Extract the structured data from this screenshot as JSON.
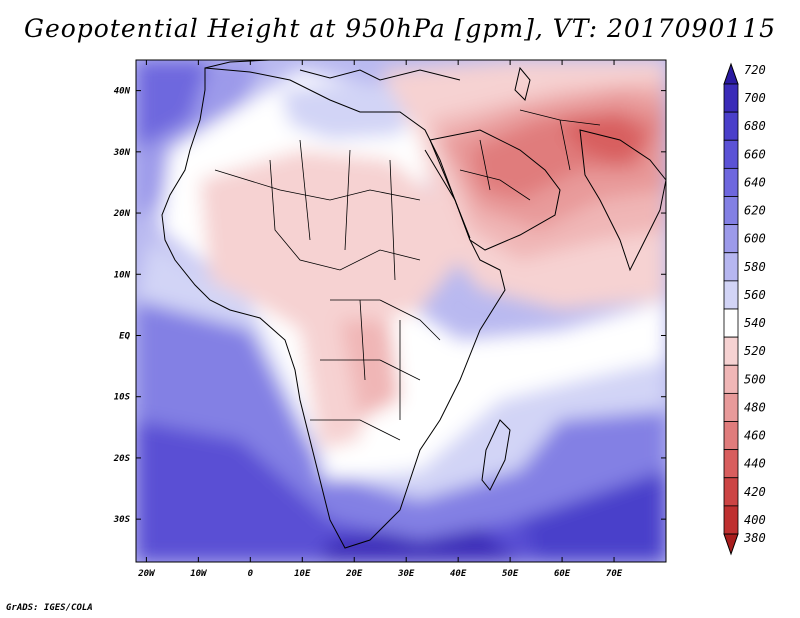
{
  "title": "Geopotential Height at 950hPa [gpm], VT: 2017090115",
  "footer": "GrADS: IGES/COLA",
  "axes": {
    "lon_labels": [
      "20W",
      "10W",
      "0",
      "10E",
      "20E",
      "30E",
      "40E",
      "50E",
      "60E",
      "70E"
    ],
    "lon_values": [
      -20,
      -10,
      0,
      10,
      20,
      30,
      40,
      50,
      60,
      70
    ],
    "lat_labels": [
      "40N",
      "30N",
      "20N",
      "10N",
      "EQ",
      "10S",
      "20S",
      "30S"
    ],
    "lat_values": [
      40,
      30,
      20,
      10,
      0,
      -10,
      -20,
      -30
    ],
    "lon_range": [
      -22,
      80
    ],
    "lat_range": [
      -37,
      45
    ]
  },
  "colorbar": {
    "levels": [
      "720",
      "700",
      "680",
      "660",
      "640",
      "620",
      "600",
      "580",
      "560",
      "540",
      "520",
      "500",
      "480",
      "460",
      "440",
      "420",
      "400",
      "380"
    ],
    "colors": [
      "#2a1aa0",
      "#3a2bb8",
      "#4a3fca",
      "#5b52d6",
      "#6e67de",
      "#8380e4",
      "#9c9aea",
      "#b6b6f0",
      "#d2d4f6",
      "#ffffff",
      "#f6d2d2",
      "#f0b6b6",
      "#e89a9a",
      "#e07c7c",
      "#d85e5e",
      "#cc4444",
      "#bf3030",
      "#a81d1d"
    ]
  }
}
